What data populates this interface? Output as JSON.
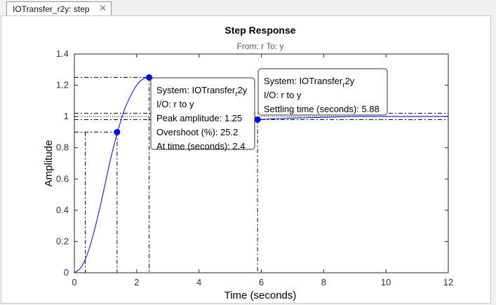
{
  "tab": {
    "title": "IOTransfer_r2y: step",
    "close_glyph": "✕"
  },
  "chart_data": {
    "type": "line",
    "title": "Step Response",
    "subtitle": "From: r  To: y",
    "xlabel": "Time (seconds)",
    "ylabel": "Amplitude",
    "xlim": [
      0,
      12
    ],
    "ylim": [
      0,
      1.4
    ],
    "xticks": [
      "0",
      "2",
      "4",
      "6",
      "8",
      "10",
      "12"
    ],
    "yticks": [
      "0",
      "0.2",
      "0.4",
      "0.6",
      "0.8",
      "1",
      "1.2",
      "1.4"
    ],
    "series": [
      {
        "x": [
          0,
          0.2,
          0.4,
          0.6,
          0.8,
          1.0,
          1.2,
          1.4,
          1.6,
          1.8,
          2.0,
          2.2,
          2.4,
          2.6,
          2.8,
          3.0,
          3.2,
          3.4,
          3.6,
          3.8,
          4.0,
          4.4,
          4.8,
          5.2,
          5.6,
          5.88,
          6.4,
          7.0,
          8.0,
          9.0,
          10.0,
          11.0,
          12.0
        ],
        "y": [
          0,
          0.03,
          0.11,
          0.24,
          0.4,
          0.58,
          0.76,
          0.91,
          1.04,
          1.13,
          1.2,
          1.24,
          1.25,
          1.24,
          1.21,
          1.17,
          1.12,
          1.08,
          1.04,
          1.01,
          0.99,
          0.97,
          0.97,
          0.97,
          0.975,
          0.98,
          0.985,
          0.99,
          0.995,
          1.0,
          1.0,
          1.0,
          1.0
        ]
      }
    ],
    "markers": [
      {
        "x": 1.37,
        "y": 0.9
      },
      {
        "x": 2.4,
        "y": 1.25
      },
      {
        "x": 5.88,
        "y": 0.98
      }
    ],
    "rise_lines": [
      0.35,
      1.37
    ],
    "settle_band": [
      0.98,
      1.02
    ],
    "steady_state": 1.0,
    "grid": false
  },
  "datatips": [
    {
      "lines": [
        {
          "pre": "System: IOTransfer",
          "sub": "r",
          "post": "2y"
        },
        {
          "pre": "I/O: r to y"
        },
        {
          "pre": "Peak amplitude: 1.25"
        },
        {
          "pre": "Overshoot (%): 25.2"
        },
        {
          "pre": "At time (seconds): 2.4"
        }
      ]
    },
    {
      "lines": [
        {
          "pre": "System: IOTransfer",
          "sub": "r",
          "post": "2y"
        },
        {
          "pre": "I/O: r to y"
        },
        {
          "pre": "Settling time (seconds): 5.88"
        }
      ]
    }
  ],
  "colors": {
    "response": "#0000ff",
    "marker": "#0000ff",
    "guide": "#000000"
  }
}
